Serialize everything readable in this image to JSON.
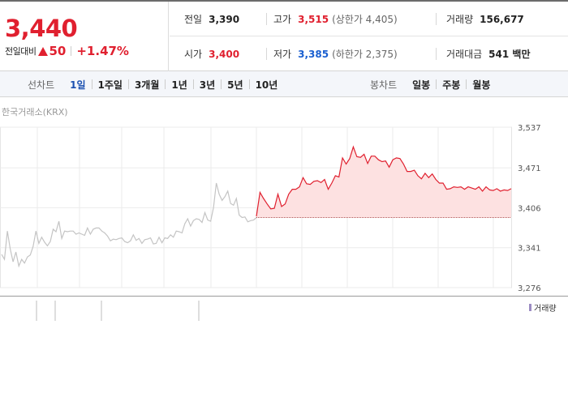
{
  "quote": {
    "price": "3,440",
    "change_label": "전일대비",
    "change_value": "50",
    "change_pct": "+1.47%",
    "direction_icon": "up-triangle-icon",
    "color_up": "#e0202f"
  },
  "stats": {
    "prev_close": {
      "label": "전일",
      "value": "3,390"
    },
    "high": {
      "label": "고가",
      "value": "3,515",
      "sub": "(상한가 4,405)"
    },
    "volume": {
      "label": "거래량",
      "value": "156,677"
    },
    "open": {
      "label": "시가",
      "value": "3,400"
    },
    "low": {
      "label": "저가",
      "value": "3,385",
      "sub": "(하한가 2,375)"
    },
    "amount": {
      "label": "거래대금",
      "value": "541 백만"
    }
  },
  "toolbar": {
    "line_title": "선차트",
    "line_periods": [
      "1일",
      "1주일",
      "3개월",
      "1년",
      "3년",
      "5년",
      "10년"
    ],
    "line_active_index": 0,
    "candle_title": "봉차트",
    "candle_periods": [
      "일봉",
      "주봉",
      "월봉"
    ]
  },
  "chart": {
    "exchange_label": "한국거래소(KRX)",
    "volume_legend": "거래량"
  },
  "chart_data": {
    "type": "line",
    "yticks": [
      3537,
      3471,
      3406,
      3341,
      3276
    ],
    "ylim": [
      3276,
      3537
    ],
    "baseline": 3390,
    "prior_session": [
      3330,
      3322,
      3368,
      3339,
      3318,
      3334,
      3311,
      3322,
      3316,
      3326,
      3329,
      3343,
      3368,
      3348,
      3358,
      3350,
      3344,
      3351,
      3371,
      3367,
      3384,
      3356,
      3368,
      3367,
      3368,
      3368,
      3363,
      3365,
      3363,
      3361,
      3373,
      3363,
      3371,
      3373,
      3373,
      3368,
      3365,
      3360,
      3352,
      3355,
      3354,
      3356,
      3357,
      3351,
      3349,
      3352,
      3362,
      3353,
      3356,
      3348,
      3354,
      3355,
      3357,
      3347,
      3348,
      3358,
      3349,
      3357,
      3356,
      3362,
      3358,
      3368,
      3367,
      3365,
      3380,
      3388,
      3376,
      3385,
      3388,
      3387,
      3382,
      3398,
      3386,
      3384,
      3406,
      3446,
      3428,
      3418,
      3424,
      3433,
      3413,
      3410,
      3421,
      3394,
      3390,
      3391,
      3383,
      3385,
      3386,
      3390
    ],
    "today": [
      3392,
      3431,
      3421,
      3412,
      3404,
      3405,
      3428,
      3408,
      3412,
      3428,
      3436,
      3436,
      3440,
      3455,
      3445,
      3444,
      3449,
      3450,
      3447,
      3452,
      3436,
      3446,
      3458,
      3456,
      3487,
      3477,
      3486,
      3505,
      3489,
      3488,
      3493,
      3478,
      3490,
      3490,
      3484,
      3481,
      3482,
      3472,
      3484,
      3487,
      3486,
      3477,
      3465,
      3465,
      3467,
      3458,
      3453,
      3462,
      3455,
      3461,
      3452,
      3446,
      3446,
      3436,
      3437,
      3440,
      3439,
      3440,
      3436,
      3440,
      3438,
      3436,
      3440,
      3433,
      3440,
      3435,
      3434,
      3437,
      3433,
      3435,
      3434,
      3437
    ],
    "volume_bars_visible": true
  }
}
